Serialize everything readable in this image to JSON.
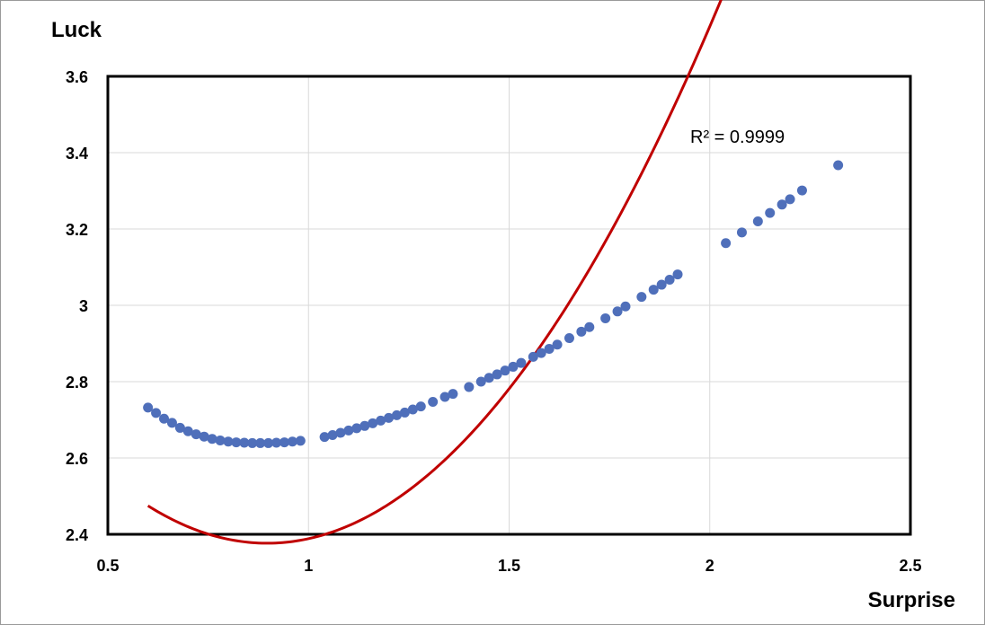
{
  "chart_data": {
    "type": "scatter",
    "title": "",
    "xlabel": "Surprise",
    "ylabel": "Luck",
    "xlim": [
      0.5,
      2.5
    ],
    "ylim": [
      2.4,
      3.6
    ],
    "x_ticks": [
      0.5,
      1,
      1.5,
      2,
      2.5
    ],
    "x_tick_labels": [
      "0.5",
      "1",
      "1.5",
      "2",
      "2.5"
    ],
    "y_ticks": [
      2.4,
      2.6,
      2.8,
      3,
      3.2,
      3.4,
      3.6
    ],
    "y_tick_labels": [
      "2.4",
      "2.6",
      "2.8",
      "3",
      "3.2",
      "3.4",
      "3.6"
    ],
    "grid": true,
    "legend": "none",
    "annotation": "R² = 0.9999",
    "colors": {
      "points": "#4f6fba",
      "trendline": "#c00000",
      "grid": "#d9d9d9",
      "plot_border": "#000000"
    },
    "series": [
      {
        "marker": "circle",
        "x": [
          0.6,
          0.62,
          0.64,
          0.66,
          0.68,
          0.7,
          0.72,
          0.74,
          0.76,
          0.78,
          0.8,
          0.82,
          0.84,
          0.86,
          0.88,
          0.9,
          0.92,
          0.94,
          0.96,
          0.98,
          1.04,
          1.06,
          1.08,
          1.1,
          1.12,
          1.14,
          1.16,
          1.18,
          1.2,
          1.22,
          1.24,
          1.26,
          1.28,
          1.31,
          1.34,
          1.36,
          1.4,
          1.43,
          1.45,
          1.47,
          1.49,
          1.51,
          1.53,
          1.56,
          1.58,
          1.6,
          1.62,
          1.65,
          1.68,
          1.7,
          1.74,
          1.77,
          1.79,
          1.83,
          1.86,
          1.88,
          1.9,
          1.92,
          2.04,
          2.08,
          2.12,
          2.15,
          2.18,
          2.2,
          2.23,
          2.32
        ],
        "y": [
          2.732,
          2.718,
          2.703,
          2.692,
          2.679,
          2.67,
          2.662,
          2.656,
          2.65,
          2.646,
          2.643,
          2.641,
          2.64,
          2.639,
          2.639,
          2.639,
          2.64,
          2.641,
          2.643,
          2.645,
          2.655,
          2.66,
          2.666,
          2.672,
          2.678,
          2.684,
          2.691,
          2.698,
          2.705,
          2.712,
          2.719,
          2.727,
          2.735,
          2.747,
          2.76,
          2.768,
          2.786,
          2.8,
          2.81,
          2.819,
          2.829,
          2.839,
          2.849,
          2.865,
          2.875,
          2.886,
          2.897,
          2.914,
          2.931,
          2.943,
          2.966,
          2.984,
          2.997,
          3.022,
          3.041,
          3.054,
          3.067,
          3.081,
          3.163,
          3.191,
          3.22,
          3.242,
          3.264,
          3.278,
          3.301,
          3.367
        ]
      }
    ],
    "trendline": {
      "type": "polynomial",
      "degree": 3,
      "coefficients": [
        3.2715,
        -1.9955,
        1.1125,
        0.0
      ]
    }
  }
}
